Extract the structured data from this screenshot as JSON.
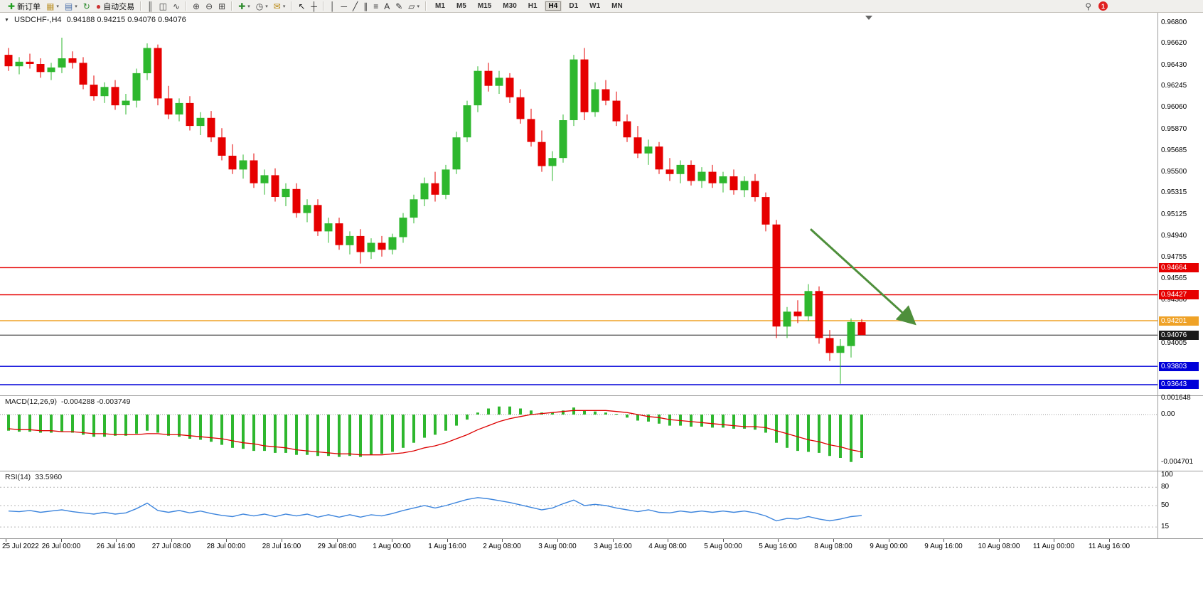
{
  "toolbar": {
    "groups": [
      {
        "items": [
          {
            "name": "new-order-button",
            "icon_name": "new-order-icon",
            "glyph": "✚",
            "glyph_color": "#1e9e1e",
            "label": "新订单"
          },
          {
            "name": "new-chart-button",
            "icon_name": "new-chart-icon",
            "glyph": "▦",
            "glyph_color": "#c09a3a",
            "dropdown": true
          },
          {
            "name": "profiles-button",
            "icon_name": "profiles-icon",
            "glyph": "▤",
            "glyph_color": "#4a6faa",
            "dropdown": true
          },
          {
            "name": "refresh-button",
            "icon_name": "refresh-icon",
            "glyph": "↻",
            "glyph_color": "#2e8b2e"
          },
          {
            "name": "auto-trading-button",
            "icon_name": "auto-trading-icon",
            "glyph": "●",
            "glyph_color": "#cc3333",
            "label": "自动交易"
          }
        ]
      },
      {
        "items": [
          {
            "name": "bar-chart-button",
            "icon_name": "bar-chart-icon",
            "glyph": "║",
            "glyph_color": "#444"
          },
          {
            "name": "candlestick-chart-button",
            "icon_name": "candlestick-chart-icon",
            "glyph": "◫",
            "glyph_color": "#444"
          },
          {
            "name": "line-chart-button",
            "icon_name": "line-chart-icon",
            "glyph": "∿",
            "glyph_color": "#444"
          }
        ]
      },
      {
        "items": [
          {
            "name": "zoom-in-button",
            "icon_name": "zoom-in-icon",
            "glyph": "⊕",
            "glyph_color": "#444"
          },
          {
            "name": "zoom-out-button",
            "icon_name": "zoom-out-icon",
            "glyph": "⊖",
            "glyph_color": "#444"
          },
          {
            "name": "tile-windows-button",
            "icon_name": "tile-windows-icon",
            "glyph": "⊞",
            "glyph_color": "#444"
          }
        ]
      },
      {
        "items": [
          {
            "name": "indicators-button",
            "icon_name": "indicators-icon",
            "glyph": "✚",
            "glyph_color": "#2e8b2e",
            "dropdown": true
          },
          {
            "name": "periods-button",
            "icon_name": "clock-icon",
            "glyph": "◷",
            "glyph_color": "#444",
            "dropdown": true
          },
          {
            "name": "templates-button",
            "icon_name": "template-mail-icon",
            "glyph": "✉",
            "glyph_color": "#b8860b",
            "dropdown": true
          }
        ]
      },
      {
        "items": [
          {
            "name": "cursor-button",
            "icon_name": "cursor-icon",
            "glyph": "↖",
            "glyph_color": "#222"
          },
          {
            "name": "crosshair-button",
            "icon_name": "crosshair-icon",
            "glyph": "┼",
            "glyph_color": "#222"
          }
        ]
      },
      {
        "items": [
          {
            "name": "vertical-line-button",
            "icon_name": "vertical-line-icon",
            "glyph": "│",
            "glyph_color": "#333"
          },
          {
            "name": "horizontal-line-button",
            "icon_name": "horizontal-line-icon",
            "glyph": "─",
            "glyph_color": "#333"
          },
          {
            "name": "trendline-button",
            "icon_name": "trendline-icon",
            "glyph": "╱",
            "glyph_color": "#333"
          },
          {
            "name": "channel-button",
            "icon_name": "channel-icon",
            "glyph": "∥",
            "glyph_color": "#333"
          },
          {
            "name": "fibonacci-button",
            "icon_name": "fibonacci-icon",
            "glyph": "≡",
            "glyph_color": "#333"
          },
          {
            "name": "text-button",
            "icon_name": "text-icon",
            "glyph": "A",
            "glyph_color": "#333"
          },
          {
            "name": "label-button",
            "icon_name": "label-icon",
            "glyph": "✎",
            "glyph_color": "#333"
          },
          {
            "name": "shapes-button",
            "icon_name": "shapes-icon",
            "glyph": "▱",
            "glyph_color": "#333",
            "dropdown": true
          }
        ]
      }
    ],
    "timeframes": [
      "M1",
      "M5",
      "M15",
      "M30",
      "H1",
      "H4",
      "D1",
      "W1",
      "MN"
    ],
    "active_timeframe": "H4",
    "search_icon_glyph": "⚲",
    "notification_count": "1"
  },
  "chart": {
    "title": "USDCHF-,H4",
    "quote": "0.94188 0.94215 0.94076 0.94076",
    "menu_icon_glyph": "▼"
  },
  "colors": {
    "bull": "#2eb72e",
    "bear": "#e60000",
    "macd_hist": "#2eb72e",
    "macd_signal": "#dd0000",
    "rsi_line": "#3d85dd",
    "line_red": "#e60000",
    "line_gold": "#efa227",
    "line_blue": "#0000d9",
    "current_price": "#1a1a1a",
    "arrow": "#4e8f3b"
  },
  "chart_data": {
    "type": "candlestick",
    "symbol": "USDCHF-",
    "timeframe": "H4",
    "ohlc_display": {
      "open": "0.94188",
      "high": "0.94215",
      "low": "0.94076",
      "close": "0.94076"
    },
    "price_axis_labels": [
      "0.96800",
      "0.96620",
      "0.96430",
      "0.96245",
      "0.96060",
      "0.95870",
      "0.95685",
      "0.95500",
      "0.95315",
      "0.95125",
      "0.94940",
      "0.94755",
      "0.94565",
      "0.94380",
      "0.94005"
    ],
    "hlines": [
      {
        "price": 0.94664,
        "label": "0.94664",
        "color": "#e60000",
        "type": "resistance"
      },
      {
        "price": 0.94427,
        "label": "0.94427",
        "color": "#e60000",
        "type": "resistance"
      },
      {
        "price": 0.94201,
        "label": "0.94201",
        "color": "#efa227",
        "type": "level"
      },
      {
        "price": 0.94076,
        "label": "0.94076",
        "color": "#1a1a1a",
        "type": "current-price"
      },
      {
        "price": 0.93803,
        "label": "0.93803",
        "color": "#0000d9",
        "type": "support"
      },
      {
        "price": 0.93643,
        "label": "0.93643",
        "color": "#0000d9",
        "type": "support"
      }
    ],
    "arrow": {
      "start": {
        "bar": 75.2,
        "price": 0.95
      },
      "end": {
        "bar": 84.9,
        "price": 0.9418
      },
      "color": "#4e8f3b"
    },
    "time_labels": [
      "25 Jul 2022",
      "26 Jul 00:00",
      "26 Jul 16:00",
      "27 Jul 08:00",
      "28 Jul 00:00",
      "28 Jul 16:00",
      "29 Jul 08:00",
      "1 Aug 00:00",
      "1 Aug 16:00",
      "2 Aug 08:00",
      "3 Aug 00:00",
      "3 Aug 16:00",
      "4 Aug 08:00",
      "5 Aug 00:00",
      "5 Aug 16:00",
      "8 Aug 08:00",
      "9 Aug 00:00",
      "9 Aug 16:00",
      "10 Aug 08:00",
      "11 Aug 00:00",
      "11 Aug 16:00"
    ],
    "candles": [
      [
        0.9652,
        0.9658,
        0.9638,
        0.9642
      ],
      [
        0.9642,
        0.965,
        0.9635,
        0.9646
      ],
      [
        0.9646,
        0.9653,
        0.964,
        0.9644
      ],
      [
        0.9644,
        0.9649,
        0.9632,
        0.9637
      ],
      [
        0.9637,
        0.9645,
        0.963,
        0.9641
      ],
      [
        0.9641,
        0.9667,
        0.9636,
        0.9649
      ],
      [
        0.9649,
        0.9655,
        0.964,
        0.9645
      ],
      [
        0.9645,
        0.965,
        0.9622,
        0.9626
      ],
      [
        0.9626,
        0.9634,
        0.9612,
        0.9616
      ],
      [
        0.9616,
        0.9628,
        0.961,
        0.9624
      ],
      [
        0.9624,
        0.963,
        0.9604,
        0.9608
      ],
      [
        0.9608,
        0.9618,
        0.96,
        0.9612
      ],
      [
        0.9612,
        0.964,
        0.9606,
        0.9636
      ],
      [
        0.9636,
        0.9662,
        0.963,
        0.9658
      ],
      [
        0.9658,
        0.9661,
        0.9608,
        0.9614
      ],
      [
        0.9614,
        0.9625,
        0.9596,
        0.96
      ],
      [
        0.96,
        0.9614,
        0.9594,
        0.961
      ],
      [
        0.961,
        0.9616,
        0.9586,
        0.959
      ],
      [
        0.959,
        0.9602,
        0.9582,
        0.9597
      ],
      [
        0.9597,
        0.9603,
        0.9576,
        0.958
      ],
      [
        0.958,
        0.9588,
        0.956,
        0.9564
      ],
      [
        0.9564,
        0.9574,
        0.9548,
        0.9552
      ],
      [
        0.9552,
        0.9565,
        0.9544,
        0.956
      ],
      [
        0.956,
        0.9566,
        0.9536,
        0.954
      ],
      [
        0.954,
        0.9552,
        0.953,
        0.9547
      ],
      [
        0.9547,
        0.9553,
        0.9524,
        0.9528
      ],
      [
        0.9528,
        0.954,
        0.952,
        0.9535
      ],
      [
        0.9535,
        0.954,
        0.951,
        0.9514
      ],
      [
        0.9514,
        0.9526,
        0.9506,
        0.9521
      ],
      [
        0.9521,
        0.9526,
        0.9494,
        0.9498
      ],
      [
        0.9498,
        0.951,
        0.9488,
        0.9505
      ],
      [
        0.9505,
        0.951,
        0.9482,
        0.9486
      ],
      [
        0.9486,
        0.9498,
        0.9478,
        0.9494
      ],
      [
        0.9494,
        0.95,
        0.947,
        0.948
      ],
      [
        0.948,
        0.9492,
        0.9474,
        0.9488
      ],
      [
        0.9488,
        0.9494,
        0.9476,
        0.9482
      ],
      [
        0.9482,
        0.9496,
        0.9478,
        0.9493
      ],
      [
        0.9493,
        0.9514,
        0.9488,
        0.951
      ],
      [
        0.951,
        0.953,
        0.9505,
        0.9526
      ],
      [
        0.9526,
        0.9545,
        0.952,
        0.954
      ],
      [
        0.954,
        0.955,
        0.9524,
        0.953
      ],
      [
        0.953,
        0.9556,
        0.9526,
        0.9552
      ],
      [
        0.9552,
        0.9585,
        0.9548,
        0.958
      ],
      [
        0.958,
        0.9612,
        0.9576,
        0.9608
      ],
      [
        0.9608,
        0.9642,
        0.9602,
        0.9638
      ],
      [
        0.9638,
        0.9645,
        0.962,
        0.9625
      ],
      [
        0.9625,
        0.9638,
        0.9618,
        0.9632
      ],
      [
        0.9632,
        0.9636,
        0.961,
        0.9615
      ],
      [
        0.9615,
        0.9622,
        0.9592,
        0.9596
      ],
      [
        0.9596,
        0.9605,
        0.9572,
        0.9576
      ],
      [
        0.9576,
        0.9586,
        0.955,
        0.9555
      ],
      [
        0.9555,
        0.9568,
        0.9542,
        0.9562
      ],
      [
        0.9562,
        0.96,
        0.9558,
        0.9595
      ],
      [
        0.9595,
        0.9652,
        0.959,
        0.9648
      ],
      [
        0.9648,
        0.9658,
        0.9595,
        0.9602
      ],
      [
        0.9602,
        0.9628,
        0.9598,
        0.9622
      ],
      [
        0.9622,
        0.963,
        0.9608,
        0.9612
      ],
      [
        0.9612,
        0.962,
        0.959,
        0.9594
      ],
      [
        0.9594,
        0.96,
        0.9576,
        0.958
      ],
      [
        0.958,
        0.959,
        0.9562,
        0.9566
      ],
      [
        0.9566,
        0.9578,
        0.9556,
        0.9572
      ],
      [
        0.9572,
        0.9576,
        0.9548,
        0.9552
      ],
      [
        0.9552,
        0.9562,
        0.9542,
        0.9548
      ],
      [
        0.9548,
        0.956,
        0.954,
        0.9556
      ],
      [
        0.9556,
        0.956,
        0.9538,
        0.9542
      ],
      [
        0.9542,
        0.9554,
        0.9536,
        0.955
      ],
      [
        0.955,
        0.9556,
        0.9536,
        0.954
      ],
      [
        0.954,
        0.955,
        0.9532,
        0.9546
      ],
      [
        0.9546,
        0.9552,
        0.953,
        0.9534
      ],
      [
        0.9534,
        0.9546,
        0.9528,
        0.9542
      ],
      [
        0.9542,
        0.9548,
        0.9524,
        0.9528
      ],
      [
        0.9528,
        0.9532,
        0.9498,
        0.9504
      ],
      [
        0.9504,
        0.9508,
        0.9405,
        0.9415
      ],
      [
        0.9415,
        0.9432,
        0.9405,
        0.9428
      ],
      [
        0.9428,
        0.9438,
        0.9418,
        0.9424
      ],
      [
        0.9424,
        0.9452,
        0.942,
        0.9446
      ],
      [
        0.9446,
        0.945,
        0.94,
        0.9405
      ],
      [
        0.9405,
        0.9412,
        0.9385,
        0.9392
      ],
      [
        0.9392,
        0.9404,
        0.9365,
        0.9398
      ],
      [
        0.9398,
        0.9422,
        0.9388,
        0.9419
      ],
      [
        0.94188,
        0.94215,
        0.94076,
        0.94076
      ]
    ],
    "macd": {
      "label": "MACD(12,26,9)",
      "values_text": "-0.004288 -0.003749",
      "axis": [
        {
          "text": "0.001648",
          "value": 0.001648
        },
        {
          "text": "0.00",
          "value": 0
        },
        {
          "text": "-0.004701",
          "value": -0.004701
        }
      ],
      "histogram": [
        -0.0016,
        -0.0017,
        -0.0017,
        -0.0018,
        -0.0018,
        -0.0017,
        -0.0018,
        -0.002,
        -0.0022,
        -0.0022,
        -0.0021,
        -0.0021,
        -0.0019,
        -0.0016,
        -0.0018,
        -0.0021,
        -0.0022,
        -0.0024,
        -0.0025,
        -0.0027,
        -0.003,
        -0.0033,
        -0.0034,
        -0.0036,
        -0.0036,
        -0.0038,
        -0.0038,
        -0.004,
        -0.004,
        -0.0041,
        -0.0041,
        -0.0042,
        -0.0041,
        -0.0042,
        -0.004,
        -0.0039,
        -0.0037,
        -0.0033,
        -0.0028,
        -0.0023,
        -0.002,
        -0.0016,
        -0.0011,
        -0.0005,
        0.0002,
        0.0006,
        0.0008,
        0.0008,
        0.0006,
        0.0004,
        0.0002,
        0.0002,
        0.0004,
        0.0007,
        0.0004,
        0.0003,
        0.0002,
        0.0,
        -0.0003,
        -0.0006,
        -0.0007,
        -0.0009,
        -0.0011,
        -0.0011,
        -0.0012,
        -0.0012,
        -0.0013,
        -0.0013,
        -0.0014,
        -0.0014,
        -0.0015,
        -0.0018,
        -0.0028,
        -0.0033,
        -0.0036,
        -0.0037,
        -0.0038,
        -0.0041,
        -0.0043,
        -0.0047,
        -0.0043
      ],
      "signal": [
        -0.0014,
        -0.0015,
        -0.0015,
        -0.0016,
        -0.0016,
        -0.0017,
        -0.0017,
        -0.0018,
        -0.0019,
        -0.0019,
        -0.002,
        -0.002,
        -0.002,
        -0.0019,
        -0.0019,
        -0.002,
        -0.002,
        -0.0021,
        -0.0022,
        -0.0023,
        -0.0024,
        -0.0026,
        -0.0028,
        -0.0029,
        -0.0031,
        -0.0032,
        -0.0033,
        -0.0035,
        -0.0036,
        -0.0037,
        -0.0038,
        -0.0039,
        -0.0039,
        -0.004,
        -0.004,
        -0.004,
        -0.0039,
        -0.0038,
        -0.0036,
        -0.0033,
        -0.0031,
        -0.0028,
        -0.0024,
        -0.002,
        -0.0015,
        -0.0011,
        -0.0007,
        -0.0004,
        -0.0002,
        0.0,
        0.0001,
        0.0002,
        0.0003,
        0.0004,
        0.0004,
        0.0004,
        0.0004,
        0.0003,
        0.0002,
        0.0,
        -0.0002,
        -0.0003,
        -0.0005,
        -0.0006,
        -0.0007,
        -0.0008,
        -0.0009,
        -0.001,
        -0.0011,
        -0.0012,
        -0.0012,
        -0.0013,
        -0.0016,
        -0.0019,
        -0.0022,
        -0.0025,
        -0.0027,
        -0.003,
        -0.0032,
        -0.0035,
        -0.0037
      ]
    },
    "rsi": {
      "label": "RSI(14)",
      "value_text": "33.5960",
      "axis_labels": [
        100,
        80,
        50,
        15
      ],
      "values": [
        41,
        40,
        42,
        39,
        41,
        43,
        40,
        38,
        36,
        39,
        36,
        38,
        45,
        54,
        42,
        39,
        42,
        38,
        41,
        37,
        34,
        32,
        36,
        33,
        36,
        32,
        36,
        33,
        36,
        31,
        35,
        31,
        35,
        31,
        35,
        33,
        37,
        42,
        46,
        50,
        46,
        50,
        55,
        60,
        63,
        61,
        58,
        55,
        51,
        47,
        43,
        46,
        53,
        59,
        50,
        52,
        50,
        46,
        43,
        40,
        43,
        39,
        38,
        41,
        39,
        41,
        39,
        41,
        39,
        41,
        38,
        33,
        25,
        29,
        28,
        32,
        28,
        25,
        28,
        32,
        33.6
      ]
    }
  }
}
